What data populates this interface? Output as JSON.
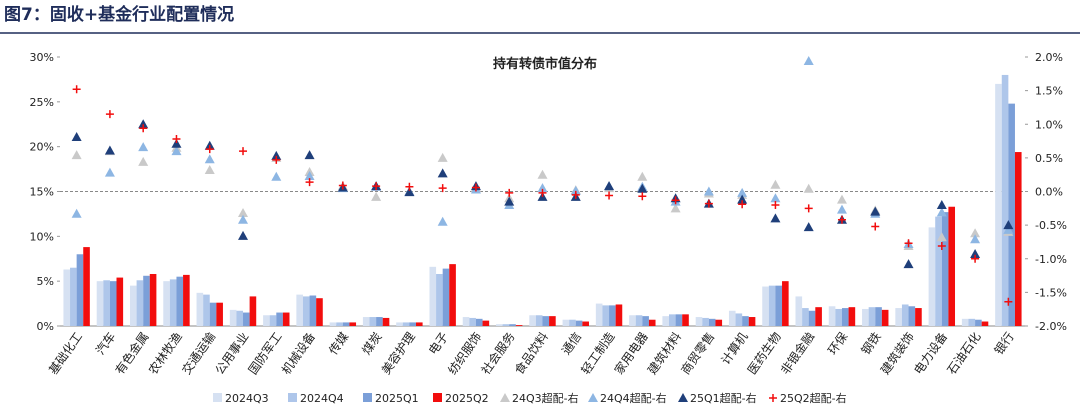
{
  "header": "图7：固收+基金行业配置情况",
  "chart_data": {
    "type": "bar",
    "title": "持有转债市值分布",
    "categories": [
      "基础化工",
      "汽车",
      "有色金属",
      "农林牧渔",
      "交通运输",
      "公用事业",
      "国防军工",
      "机械设备",
      "传媒",
      "煤炭",
      "美容护理",
      "电子",
      "纺织服饰",
      "社会服务",
      "食品饮料",
      "通信",
      "轻工制造",
      "家用电器",
      "建筑材料",
      "商贸零售",
      "计算机",
      "医药生物",
      "非银金融",
      "环保",
      "钢铁",
      "建筑装饰",
      "电力设备",
      "石油石化",
      "银行"
    ],
    "series": [
      {
        "name": "2024Q3",
        "type": "bar",
        "color": "#d6e1f2",
        "values": [
          6.3,
          5.0,
          4.5,
          5.0,
          3.7,
          1.8,
          1.2,
          3.5,
          0.4,
          1.0,
          0.4,
          6.6,
          1.0,
          0.2,
          1.2,
          0.7,
          2.5,
          1.2,
          1.1,
          1.0,
          1.7,
          4.4,
          3.3,
          2.2,
          1.9,
          2.0,
          11.0,
          0.8,
          27.0
        ]
      },
      {
        "name": "2024Q4",
        "type": "bar",
        "color": "#aec6ea",
        "values": [
          6.5,
          5.1,
          5.1,
          5.2,
          3.5,
          1.7,
          1.2,
          3.3,
          0.4,
          1.0,
          0.4,
          5.8,
          0.9,
          0.2,
          1.2,
          0.7,
          2.3,
          1.2,
          1.3,
          0.9,
          1.4,
          4.5,
          2.0,
          1.9,
          2.1,
          2.4,
          12.2,
          0.8,
          28.0
        ]
      },
      {
        "name": "2025Q1",
        "type": "bar",
        "color": "#7b9fd8",
        "values": [
          8.0,
          5.0,
          5.6,
          5.5,
          2.6,
          1.5,
          1.5,
          3.4,
          0.4,
          1.0,
          0.4,
          6.4,
          0.8,
          0.2,
          1.1,
          0.6,
          2.3,
          1.1,
          1.3,
          0.8,
          1.1,
          4.5,
          1.7,
          2.0,
          2.1,
          2.2,
          12.7,
          0.7,
          24.8
        ]
      },
      {
        "name": "2025Q2",
        "type": "bar",
        "color": "#f20d0d",
        "values": [
          8.8,
          5.4,
          5.8,
          5.7,
          2.6,
          3.3,
          1.5,
          3.1,
          0.4,
          0.9,
          0.4,
          6.9,
          0.6,
          0.1,
          1.1,
          0.5,
          2.4,
          0.7,
          1.3,
          0.7,
          1.0,
          5.0,
          2.1,
          2.1,
          1.8,
          2.0,
          13.3,
          0.5,
          19.4
        ]
      },
      {
        "name": "24Q3超配-右",
        "type": "triangle",
        "axis": "y2",
        "color": "#c9c9c9",
        "values": [
          0.54,
          0.6,
          0.44,
          0.65,
          0.32,
          -0.32,
          0.5,
          0.29,
          0.08,
          -0.08,
          0.0,
          0.5,
          0.05,
          -0.1,
          0.25,
          0.02,
          0.05,
          0.22,
          -0.25,
          -0.03,
          -0.05,
          0.1,
          0.04,
          -0.12,
          -0.28,
          -0.81,
          -0.68,
          -0.62,
          -0.6
        ]
      },
      {
        "name": "24Q4超配-右",
        "type": "triangle",
        "axis": "y2",
        "color": "#8db6e3",
        "values": [
          -0.33,
          0.28,
          0.66,
          0.6,
          0.48,
          -0.42,
          0.22,
          0.23,
          0.05,
          0.07,
          0.0,
          -0.45,
          0.03,
          -0.2,
          0.05,
          0.01,
          0.08,
          0.07,
          -0.15,
          0.0,
          -0.02,
          -0.1,
          1.94,
          -0.27,
          -0.33,
          -0.78,
          -0.31,
          -0.71,
          -0.57
        ]
      },
      {
        "name": "25Q1超配-右",
        "type": "triangle",
        "axis": "y2",
        "color": "#1f3f7a",
        "values": [
          0.81,
          0.61,
          1.0,
          0.71,
          0.68,
          -0.66,
          0.53,
          0.54,
          0.06,
          0.08,
          -0.01,
          0.27,
          0.08,
          -0.15,
          -0.08,
          -0.08,
          0.08,
          0.04,
          -0.1,
          -0.18,
          -0.12,
          -0.4,
          -0.53,
          -0.42,
          -0.3,
          -1.08,
          -0.2,
          -0.93,
          -0.5
        ]
      },
      {
        "name": "25Q2超配-右",
        "type": "plus",
        "axis": "y2",
        "color": "#f20d0d",
        "values": [
          1.52,
          1.15,
          0.94,
          0.78,
          0.63,
          0.6,
          0.47,
          0.14,
          0.09,
          0.08,
          0.07,
          0.05,
          0.06,
          -0.02,
          -0.02,
          -0.05,
          -0.06,
          -0.07,
          -0.13,
          -0.18,
          -0.19,
          -0.2,
          -0.25,
          -0.42,
          -0.52,
          -0.77,
          -0.81,
          -1.0,
          -1.64
        ]
      }
    ],
    "ylim": [
      0,
      30
    ],
    "yticks": [
      {
        "value": 0,
        "label": "0%"
      },
      {
        "value": 5,
        "label": "5%"
      },
      {
        "value": 10,
        "label": "10%"
      },
      {
        "value": 15,
        "label": "15%"
      },
      {
        "value": 20,
        "label": "20%"
      },
      {
        "value": 25,
        "label": "25%"
      },
      {
        "value": 30,
        "label": "30%"
      }
    ],
    "y2lim": [
      -2.0,
      2.0
    ],
    "y2ticks": [
      {
        "value": -2.0,
        "label": "-2.0%"
      },
      {
        "value": -1.5,
        "label": "-1.5%"
      },
      {
        "value": -1.0,
        "label": "-1.0%"
      },
      {
        "value": -0.5,
        "label": "-0.5%"
      },
      {
        "value": 0.0,
        "label": "0.0%"
      },
      {
        "value": 0.5,
        "label": "0.5%"
      },
      {
        "value": 1.0,
        "label": "1.0%"
      },
      {
        "value": 1.5,
        "label": "1.5%"
      },
      {
        "value": 2.0,
        "label": "2.0%"
      }
    ],
    "legend": "bottom"
  }
}
